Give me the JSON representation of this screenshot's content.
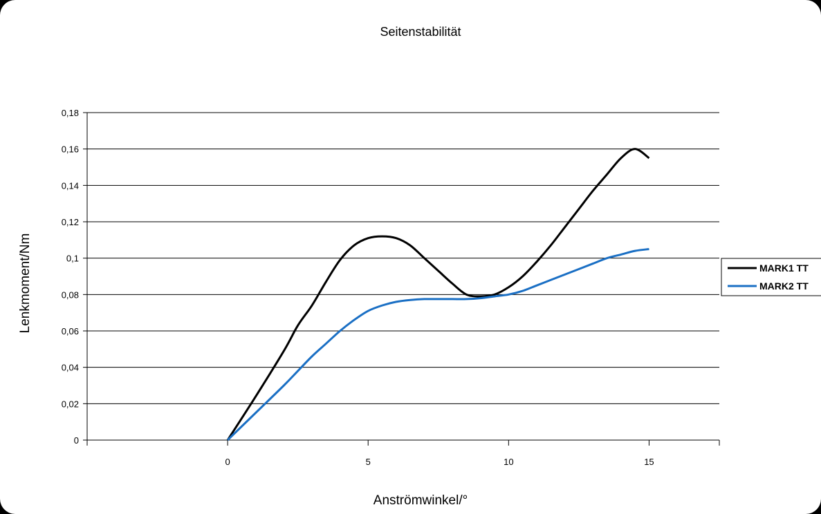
{
  "chart_data": {
    "type": "line",
    "title": "Seitenstabilität",
    "xlabel": "Anströmwinkel/°",
    "ylabel": "Lenkmoment/Nm",
    "xlim": [
      -5,
      17.5
    ],
    "ylim": [
      0,
      0.18
    ],
    "x_ticks": [
      "0",
      "5",
      "10",
      "15"
    ],
    "x_tick_values": [
      0,
      5,
      10,
      15
    ],
    "y_ticks": [
      "0",
      "0,02",
      "0,04",
      "0,06",
      "0,08",
      "0,1",
      "0,12",
      "0,14",
      "0,16",
      "0,18"
    ],
    "y_tick_values": [
      0,
      0.02,
      0.04,
      0.06,
      0.08,
      0.1,
      0.12,
      0.14,
      0.16,
      0.18
    ],
    "grid": "horizontal",
    "legend_position": "right",
    "series": [
      {
        "name": "MARK1 TT",
        "color": "#000000",
        "x": [
          0,
          1,
          2,
          2.5,
          3,
          3.5,
          4,
          4.5,
          5,
          5.5,
          6,
          6.5,
          7,
          7.5,
          8,
          8.5,
          9,
          9.5,
          10,
          10.5,
          11,
          11.5,
          12,
          12.5,
          13,
          13.5,
          14,
          14.5,
          15
        ],
        "values": [
          0,
          0.024,
          0.049,
          0.063,
          0.074,
          0.087,
          0.099,
          0.107,
          0.111,
          0.112,
          0.111,
          0.107,
          0.1,
          0.093,
          0.086,
          0.08,
          0.079,
          0.08,
          0.084,
          0.09,
          0.098,
          0.107,
          0.117,
          0.127,
          0.137,
          0.146,
          0.155,
          0.16,
          0.155
        ]
      },
      {
        "name": "MARK2 TT",
        "color": "#1a6fc4",
        "x": [
          0,
          1,
          2,
          2.5,
          3,
          3.5,
          4,
          4.5,
          5,
          5.5,
          6,
          6.5,
          7,
          7.5,
          8,
          8.5,
          9,
          9.5,
          10,
          10.5,
          11,
          11.5,
          12,
          12.5,
          13,
          13.5,
          14,
          14.5,
          15
        ],
        "values": [
          0,
          0.015,
          0.03,
          0.038,
          0.046,
          0.053,
          0.06,
          0.066,
          0.071,
          0.074,
          0.076,
          0.077,
          0.0775,
          0.0775,
          0.0775,
          0.0775,
          0.078,
          0.079,
          0.08,
          0.082,
          0.085,
          0.088,
          0.091,
          0.094,
          0.097,
          0.1,
          0.102,
          0.104,
          0.105
        ]
      }
    ]
  }
}
